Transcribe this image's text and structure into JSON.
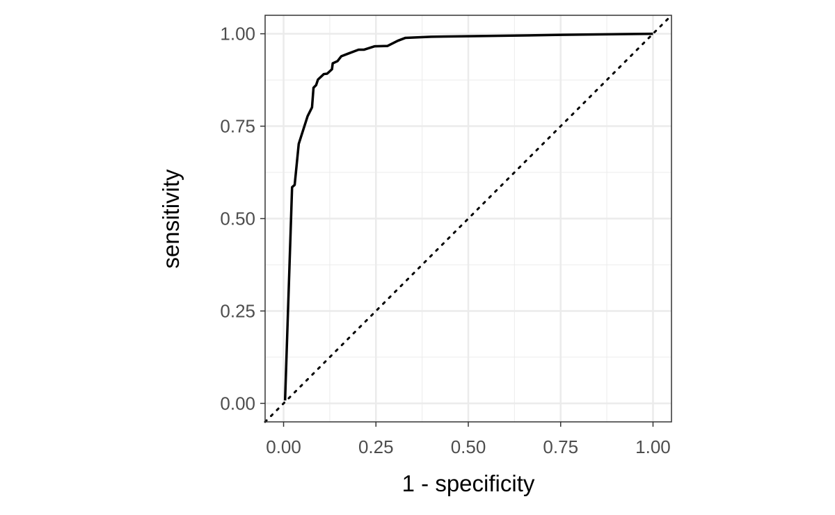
{
  "chart_data": {
    "type": "line",
    "title": "",
    "xlabel": "1 - specificity",
    "ylabel": "sensitivity",
    "xlim": [
      -0.05,
      1.05
    ],
    "ylim": [
      -0.05,
      1.05
    ],
    "xticks": [
      "0.00",
      "0.25",
      "0.50",
      "0.75",
      "1.00"
    ],
    "yticks": [
      "0.00",
      "0.25",
      "0.50",
      "0.75",
      "1.00"
    ],
    "grid": true,
    "reference_line": {
      "style": "dotted",
      "x": [
        -0.05,
        1.05
      ],
      "y": [
        -0.05,
        1.05
      ]
    },
    "series": [
      {
        "color": "#000000",
        "x": [
          0.004,
          0.023,
          0.03,
          0.041,
          0.065,
          0.077,
          0.081,
          0.088,
          0.093,
          0.109,
          0.118,
          0.131,
          0.133,
          0.146,
          0.156,
          0.174,
          0.203,
          0.218,
          0.246,
          0.281,
          0.309,
          0.33,
          0.4,
          0.55,
          0.75,
          1.0
        ],
        "y": [
          0.008,
          0.585,
          0.591,
          0.702,
          0.777,
          0.801,
          0.854,
          0.861,
          0.876,
          0.891,
          0.892,
          0.904,
          0.92,
          0.926,
          0.939,
          0.946,
          0.957,
          0.957,
          0.966,
          0.967,
          0.981,
          0.989,
          0.992,
          0.994,
          0.997,
          1.0
        ]
      }
    ]
  }
}
